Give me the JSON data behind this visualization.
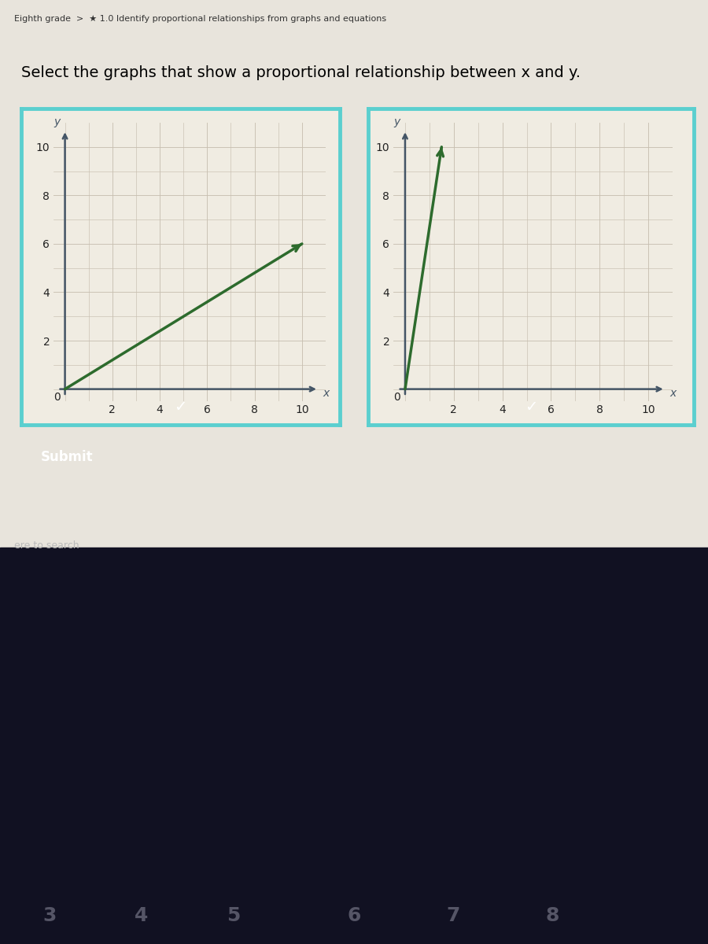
{
  "title": "Select the graphs that show a proportional relationship between x and y.",
  "title_fontsize": 14,
  "graph_bg": "#f0ece2",
  "page_bg_top": "#e8e4dc",
  "page_bg_bottom": "#1a1a2e",
  "border_selected_color": "#5bcfcf",
  "graph1": {
    "line_x": [
      0,
      10
    ],
    "line_y": [
      0,
      6
    ],
    "line_color": "#2d6b2d",
    "line_width": 2.5,
    "xlim": [
      -0.5,
      11
    ],
    "ylim": [
      -0.5,
      11
    ],
    "xticks": [
      2,
      4,
      6,
      8,
      10
    ],
    "yticks": [
      2,
      4,
      6,
      8,
      10
    ],
    "xlabel": "x",
    "ylabel": "y"
  },
  "graph2": {
    "line_x": [
      0,
      1.5
    ],
    "line_y": [
      0,
      10
    ],
    "line_color": "#2d6b2d",
    "line_width": 2.5,
    "xlim": [
      -0.5,
      11
    ],
    "ylim": [
      -0.5,
      11
    ],
    "xticks": [
      2,
      4,
      6,
      8,
      10
    ],
    "yticks": [
      2,
      4,
      6,
      8,
      10
    ],
    "xlabel": "x",
    "ylabel": "y"
  },
  "submit_text": "Submit",
  "submit_bg": "#5a9e3a",
  "submit_text_color": "#ffffff",
  "header_text": "Eighth grade",
  "grid_color": "#c8bfb0",
  "grid_linewidth": 0.8,
  "axis_color": "#445566",
  "tick_color": "#222222",
  "selected_bar_color": "#7ecece",
  "check_color": "#ffffff"
}
